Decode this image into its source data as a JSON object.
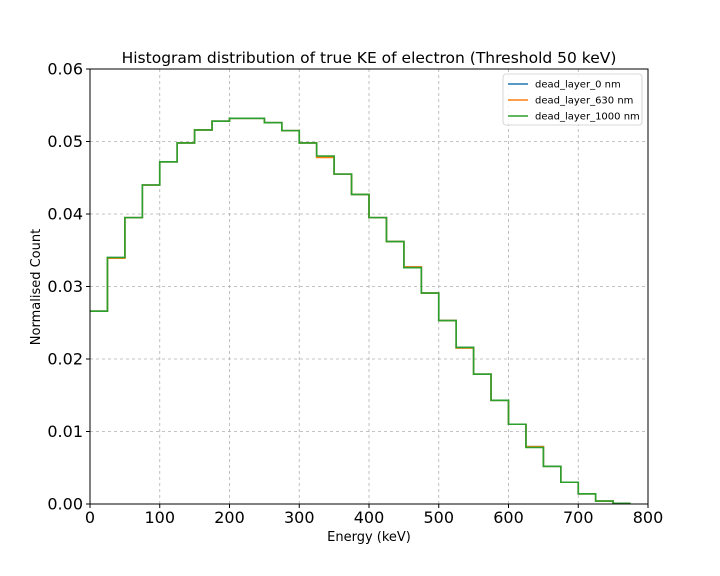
{
  "chart_data": {
    "type": "line",
    "subtype": "step-histogram",
    "title": "Histogram distribution of true KE of electron (Threshold 50 keV)",
    "xlabel": "Energy (keV)",
    "ylabel": "Normalised Count",
    "xlim": [
      0,
      800
    ],
    "ylim": [
      0,
      0.06
    ],
    "xticks": [
      0,
      100,
      200,
      300,
      400,
      500,
      600,
      700,
      800
    ],
    "yticks": [
      0.0,
      0.01,
      0.02,
      0.03,
      0.04,
      0.05,
      0.06
    ],
    "xtick_labels": [
      "0",
      "100",
      "200",
      "300",
      "400",
      "500",
      "600",
      "700",
      "800"
    ],
    "ytick_labels": [
      "0.00",
      "0.01",
      "0.02",
      "0.03",
      "0.04",
      "0.05",
      "0.06"
    ],
    "grid": true,
    "legend_position": "top-right",
    "bin_edges": [
      0,
      25,
      50,
      75,
      100,
      125,
      150,
      175,
      200,
      225,
      250,
      275,
      300,
      325,
      350,
      375,
      400,
      425,
      450,
      475,
      500,
      525,
      550,
      575,
      600,
      625,
      650,
      675,
      700,
      725,
      750,
      775
    ],
    "series": [
      {
        "name": "dead_layer_0 nm",
        "color": "#1f77b4",
        "values": [
          0.0266,
          0.034,
          0.0395,
          0.044,
          0.0472,
          0.0498,
          0.0516,
          0.0528,
          0.0532,
          0.0532,
          0.0526,
          0.0515,
          0.0498,
          0.0479,
          0.0455,
          0.0427,
          0.0395,
          0.0362,
          0.0327,
          0.0291,
          0.0253,
          0.0216,
          0.0179,
          0.0143,
          0.011,
          0.0079,
          0.0052,
          0.003,
          0.0014,
          0.0004,
          0.0001
        ]
      },
      {
        "name": "dead_layer_630 nm",
        "color": "#ff7f0e",
        "values": [
          0.0266,
          0.0339,
          0.0395,
          0.044,
          0.0472,
          0.0498,
          0.0516,
          0.0528,
          0.0532,
          0.0532,
          0.0526,
          0.0515,
          0.0498,
          0.0478,
          0.0455,
          0.0427,
          0.0395,
          0.0362,
          0.0327,
          0.0291,
          0.0253,
          0.0215,
          0.0179,
          0.0143,
          0.011,
          0.0079,
          0.0052,
          0.003,
          0.0014,
          0.0004,
          0.0001
        ]
      },
      {
        "name": "dead_layer_1000 nm",
        "color": "#2ca02c",
        "values": [
          0.0266,
          0.034,
          0.0395,
          0.044,
          0.0472,
          0.0498,
          0.0516,
          0.0528,
          0.0532,
          0.0532,
          0.0526,
          0.0515,
          0.0498,
          0.048,
          0.0455,
          0.0427,
          0.0395,
          0.0362,
          0.0326,
          0.0291,
          0.0253,
          0.0216,
          0.0179,
          0.0143,
          0.011,
          0.0078,
          0.0052,
          0.003,
          0.0014,
          0.0004,
          0.0001
        ]
      }
    ]
  }
}
